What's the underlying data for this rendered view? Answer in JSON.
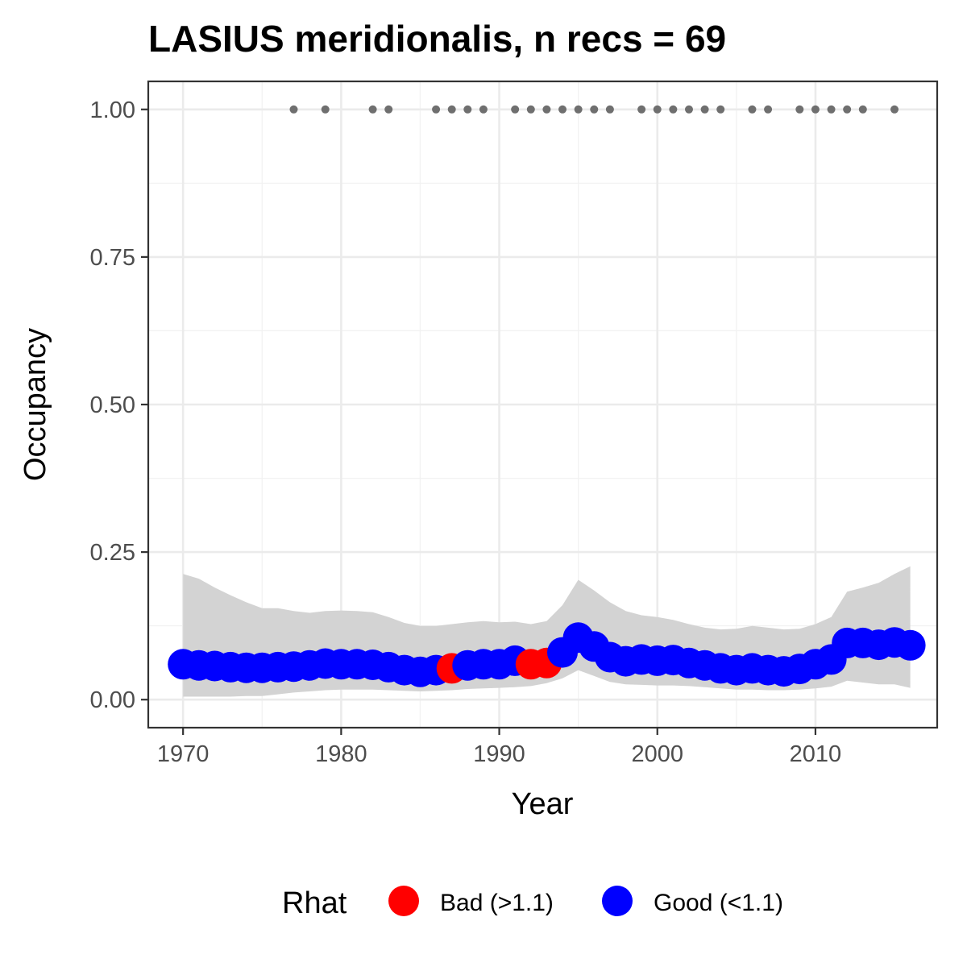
{
  "chart_data": {
    "type": "line",
    "title": "LASIUS meridionalis, n recs = 69",
    "xlabel": "Year",
    "ylabel": "Occupancy",
    "xlim": [
      1967.8,
      2017.7
    ],
    "ylim": [
      -0.0475,
      1.0475
    ],
    "x_ticks": [
      1970,
      1980,
      1990,
      2000,
      2010
    ],
    "x_tick_labels": [
      "1970",
      "1980",
      "1990",
      "2000",
      "2010"
    ],
    "y_ticks": [
      0,
      0.25,
      0.5,
      0.75,
      1.0
    ],
    "y_tick_labels": [
      "0.00",
      "0.25",
      "0.50",
      "0.75",
      "1.00"
    ],
    "grid": true,
    "legend": {
      "title": "Rhat",
      "position": "bottom",
      "entries": [
        {
          "key": "bad",
          "label": "Bad (>1.1)",
          "color": "#FF0000"
        },
        {
          "key": "good",
          "label": "Good (<1.1)",
          "color": "#0000FF"
        }
      ]
    },
    "colors": {
      "bad": "#FF0000",
      "good": "#0000FF",
      "ribbon": "#D3D3D3",
      "records": "#6F6F6F"
    },
    "series": [
      {
        "x": [
          1970,
          1971,
          1972,
          1973,
          1974,
          1975,
          1976,
          1977,
          1978,
          1979,
          1980,
          1981,
          1982,
          1983,
          1984,
          1985,
          1986,
          1987,
          1988,
          1989,
          1990,
          1991,
          1992,
          1993,
          1994,
          1995,
          1996,
          1997,
          1998,
          1999,
          2000,
          2001,
          2002,
          2003,
          2004,
          2005,
          2006,
          2007,
          2008,
          2009,
          2010,
          2011,
          2012,
          2013,
          2014,
          2015,
          2016
        ],
        "y": [
          0.06,
          0.058,
          0.057,
          0.055,
          0.054,
          0.054,
          0.055,
          0.056,
          0.058,
          0.061,
          0.06,
          0.06,
          0.059,
          0.055,
          0.05,
          0.047,
          0.05,
          0.053,
          0.058,
          0.06,
          0.06,
          0.066,
          0.06,
          0.062,
          0.08,
          0.105,
          0.09,
          0.072,
          0.065,
          0.068,
          0.066,
          0.067,
          0.062,
          0.058,
          0.053,
          0.05,
          0.053,
          0.05,
          0.048,
          0.052,
          0.06,
          0.068,
          0.096,
          0.096,
          0.093,
          0.097,
          0.092
        ],
        "lower": [
          0.005,
          0.005,
          0.005,
          0.005,
          0.006,
          0.006,
          0.009,
          0.012,
          0.014,
          0.016,
          0.017,
          0.017,
          0.017,
          0.016,
          0.015,
          0.014,
          0.015,
          0.016,
          0.018,
          0.019,
          0.02,
          0.021,
          0.023,
          0.028,
          0.036,
          0.05,
          0.04,
          0.03,
          0.026,
          0.025,
          0.024,
          0.024,
          0.023,
          0.021,
          0.019,
          0.017,
          0.017,
          0.016,
          0.016,
          0.017,
          0.019,
          0.022,
          0.032,
          0.029,
          0.026,
          0.026,
          0.02
        ],
        "upper": [
          0.213,
          0.205,
          0.19,
          0.177,
          0.165,
          0.155,
          0.155,
          0.15,
          0.147,
          0.15,
          0.151,
          0.15,
          0.148,
          0.14,
          0.13,
          0.125,
          0.125,
          0.128,
          0.131,
          0.133,
          0.131,
          0.132,
          0.128,
          0.133,
          0.16,
          0.203,
          0.185,
          0.165,
          0.15,
          0.143,
          0.14,
          0.135,
          0.128,
          0.122,
          0.119,
          0.12,
          0.125,
          0.122,
          0.119,
          0.12,
          0.128,
          0.14,
          0.183,
          0.19,
          0.198,
          0.213,
          0.226
        ],
        "rhat": [
          "good",
          "good",
          "good",
          "good",
          "good",
          "good",
          "good",
          "good",
          "good",
          "good",
          "good",
          "good",
          "good",
          "good",
          "good",
          "good",
          "good",
          "bad",
          "good",
          "good",
          "good",
          "good",
          "bad",
          "bad",
          "good",
          "good",
          "good",
          "good",
          "good",
          "good",
          "good",
          "good",
          "good",
          "good",
          "good",
          "good",
          "good",
          "good",
          "good",
          "good",
          "good",
          "good",
          "good",
          "good",
          "good",
          "good",
          "good"
        ]
      }
    ],
    "record_years": [
      1977,
      1979,
      1982,
      1983,
      1986,
      1987,
      1988,
      1989,
      1991,
      1992,
      1993,
      1994,
      1995,
      1996,
      1997,
      1999,
      2000,
      2001,
      2002,
      2003,
      2004,
      2006,
      2007,
      2009,
      2010,
      2011,
      2012,
      2013,
      2015
    ],
    "record_value": 1.0
  }
}
